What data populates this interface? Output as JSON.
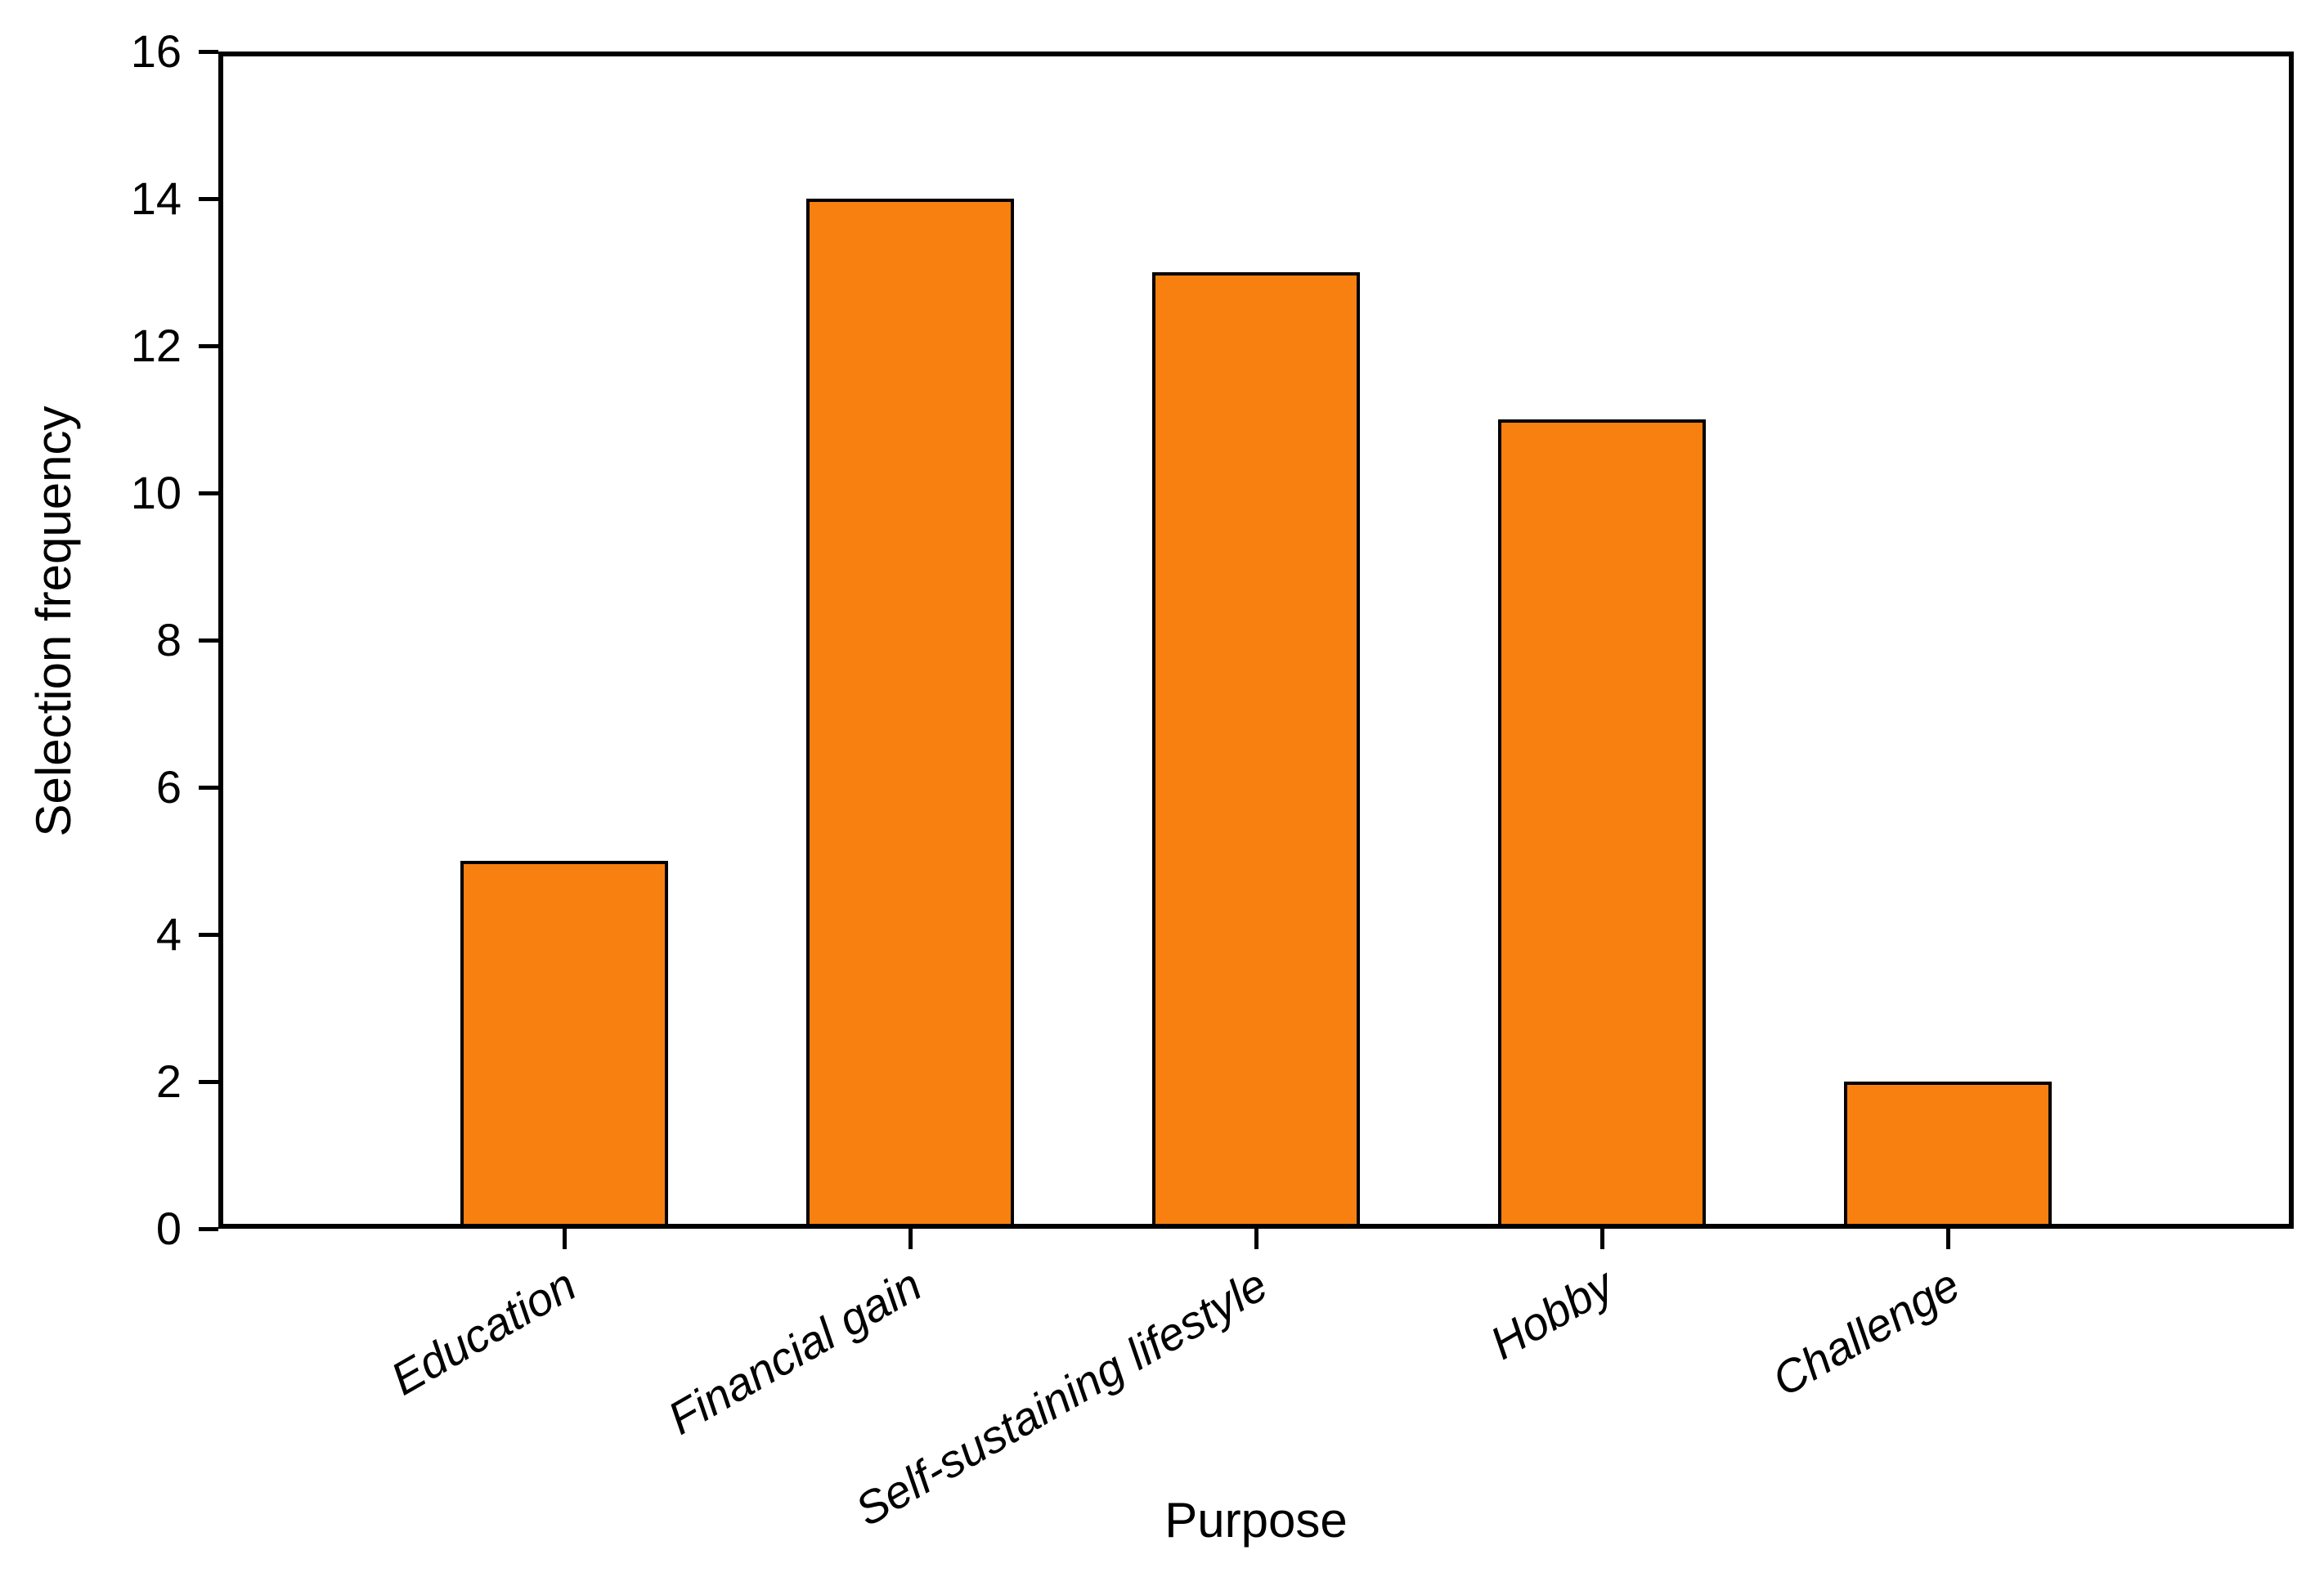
{
  "chart_data": {
    "type": "bar",
    "categories": [
      "Education",
      "Financial gain",
      "Self-sustaining lifestyle",
      "Hobby",
      "Challenge"
    ],
    "values": [
      5,
      14,
      13,
      11,
      2
    ],
    "xlabel": "Purpose",
    "ylabel": "Selection frequency",
    "ylim": [
      0,
      16
    ],
    "yticks": [
      0,
      2,
      4,
      6,
      8,
      10,
      12,
      14,
      16
    ],
    "grid": false,
    "legend": null,
    "x_tick_label_style": "italic",
    "x_tick_label_rotation_deg": -30,
    "colors": {
      "bar_fill": "#F88010",
      "bar_edge": "#000000",
      "axis": "#000000",
      "background": "#FFFFFF",
      "text": "#000000"
    }
  }
}
